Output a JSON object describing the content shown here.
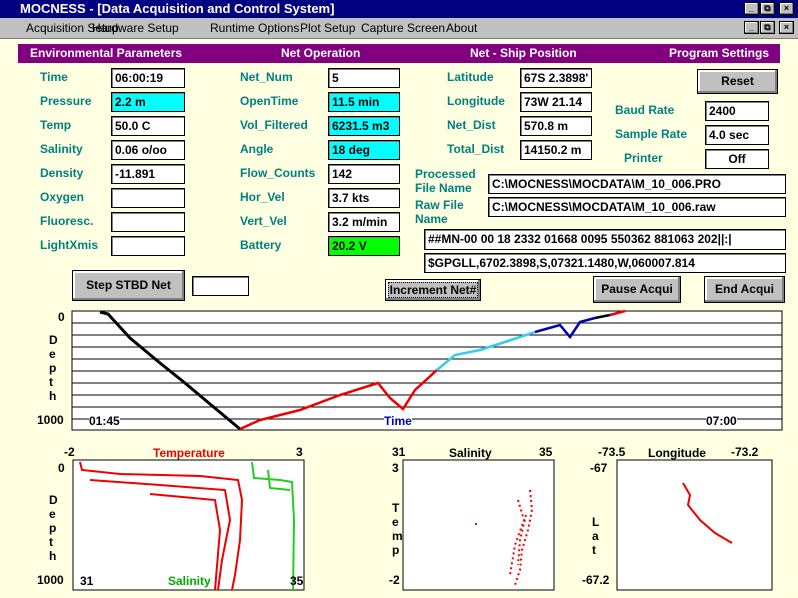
{
  "window": {
    "title": "MOCNESS - [Data Acquisition and Control System]"
  },
  "menu": [
    "Acquisition Setup",
    "Hardware Setup",
    "Runtime Options",
    "Plot Setup",
    "Capture Screen",
    "About"
  ],
  "headers": [
    "Environmental Parameters",
    "Net Operation",
    "Net - Ship Position",
    "Program Settings"
  ],
  "environmental": [
    {
      "label": "Time",
      "value": "06:00:19"
    },
    {
      "label": "Pressure",
      "value": "2.2 m",
      "color": "#00ffff"
    },
    {
      "label": "Temp",
      "value": "50.0 C"
    },
    {
      "label": "Salinity",
      "value": "0.06 o/oo"
    },
    {
      "label": "Density",
      "value": "-11.891"
    },
    {
      "label": "Oxygen"
    },
    {
      "label": "Fluoresc."
    },
    {
      "label": "LightXmis"
    }
  ],
  "net_operation": [
    {
      "label": "Net_Num",
      "value": "5"
    },
    {
      "label": "OpenTime",
      "value": "11.5 min",
      "color": "#00ffff"
    },
    {
      "label": "Vol_Filtered",
      "value": "6231.5 m3",
      "color": "#00ffff"
    },
    {
      "label": "Angle",
      "value": "18 deg",
      "color": "#00ffff"
    },
    {
      "label": "Flow_Counts",
      "value": "142"
    },
    {
      "label": "Hor_Vel",
      "value": "3.7 kts"
    },
    {
      "label": "Vert_Vel",
      "value": "3.2 m/min"
    },
    {
      "label": "Battery",
      "value": "20.2 V",
      "color": "#00ff00"
    }
  ],
  "ship_position": [
    {
      "label": "Latitude",
      "value": "67S 2.3898'"
    },
    {
      "label": "Longitude",
      "value": "73W 21.14"
    },
    {
      "label": "Net_Dist",
      "value": "570.8 m"
    },
    {
      "label": "Total_Dist",
      "value": "14150.2 m"
    }
  ],
  "program_settings": {
    "reset": "Reset",
    "items": [
      {
        "label": "Baud Rate",
        "value": "2400"
      },
      {
        "label": "Sample Rate",
        "value": "4.0 sec"
      },
      {
        "label": "Printer",
        "value": "Off"
      }
    ]
  },
  "files": {
    "processed_label": "Processed File Name",
    "processed_path": "C:\\MOCNESS\\MOCDATA\\M_10_006.PRO",
    "raw_label": "Raw File Name",
    "raw_path": "C:\\MOCNESS\\MOCDATA\\M_10_006.raw",
    "raw_line": "##MN-00 00 18 2332 01668 0095 550362 881063 202||:|",
    "gps_line": "$GPGLL,6702.3898,S,07321.1480,W,060007.814"
  },
  "buttons": {
    "step": "Step STBD Net",
    "increment": "Increment Net#",
    "pause": "Pause Acqui",
    "end": "End Acqui"
  },
  "depth_plot": {
    "y_label": "Depth",
    "y_top": "0",
    "y_bottom": "1000",
    "x_start": "01:45",
    "x_label": "Time",
    "x_end": "07:00"
  },
  "temp_plot": {
    "title": "Temperature",
    "x_min": "-2",
    "x_max": "3",
    "y_label": "Depth",
    "y_top": "0",
    "y_bottom": "1000",
    "x2_label": "Salinity",
    "x2_min": "31",
    "x2_max": "35"
  },
  "ts_plot": {
    "title": "Salinity",
    "x_min": "31",
    "x_max": "35",
    "y_label": "Temp",
    "y_top": "3",
    "y_bottom": "-2"
  },
  "position_plot": {
    "title": "Longitude",
    "x_min": "-73.5",
    "x_max": "-73.2",
    "y_label": "Lat",
    "y_top": "-67",
    "y_bottom": "-67.2"
  }
}
